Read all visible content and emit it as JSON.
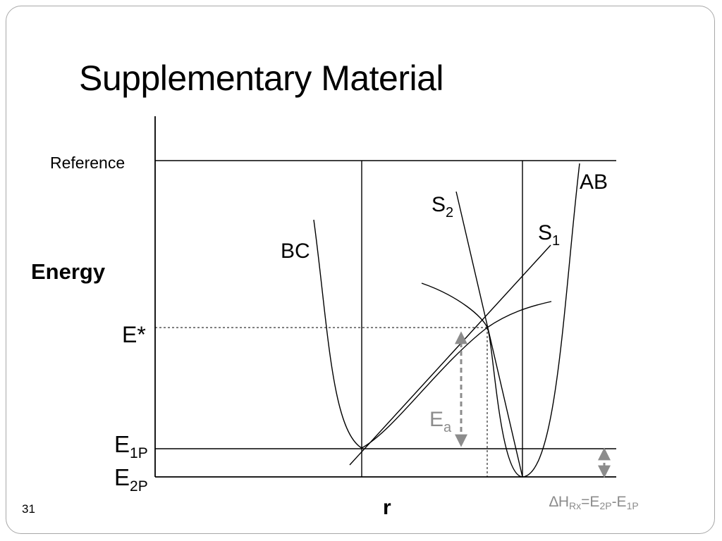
{
  "slide": {
    "title": "Supplementary Material",
    "number": "31"
  },
  "diagram": {
    "y_axis_label": "Energy",
    "x_axis_label": "r",
    "reference_label": "Reference",
    "e_star_label": "E*",
    "e1p_label": {
      "main": "E",
      "sub": "1P"
    },
    "e2p_label": {
      "main": "E",
      "sub": "2P"
    },
    "curves": {
      "bc": "BC",
      "ab": "AB",
      "s1": {
        "main": "S",
        "sub": "1"
      },
      "s2": {
        "main": "S",
        "sub": "2"
      }
    },
    "ea_label": {
      "main": "E",
      "sub": "a"
    },
    "delta_h": {
      "delta": "∆",
      "h": "H",
      "sub_rx": "Rx",
      "eq": "=E",
      "sub_2p": "2P",
      "minus": "-E",
      "sub_1p": "1P"
    },
    "colors": {
      "line": "#000000",
      "gray_annotation": "#8c8c8c",
      "frame": "#a8a8a8"
    }
  }
}
